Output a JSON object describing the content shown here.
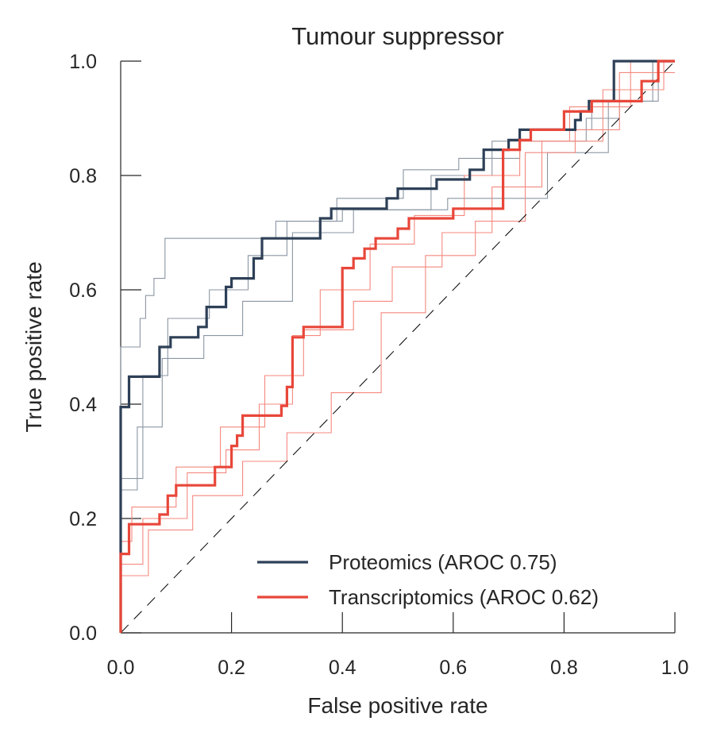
{
  "chart_data": {
    "type": "line",
    "title": "Tumour suppressor",
    "xlabel": "False positive rate",
    "ylabel": "True positive rate",
    "xlim": [
      0,
      1
    ],
    "ylim": [
      0,
      1
    ],
    "xticks": [
      "0.0",
      "0.2",
      "0.4",
      "0.6",
      "0.8",
      "1.0"
    ],
    "yticks": [
      "0.0",
      "0.2",
      "0.4",
      "0.6",
      "0.8",
      "1.0"
    ],
    "grid": false,
    "legend_position": "bottom-right",
    "diagonal": {
      "x": [
        0,
        1
      ],
      "y": [
        0,
        1
      ],
      "style": "dashed",
      "color": "#000000"
    },
    "series": [
      {
        "name": "Proteomics (AROC 0.75)",
        "color": "#2e4057",
        "x": [
          0,
          0,
          0.015,
          0.015,
          0.07,
          0.07,
          0.09,
          0.09,
          0.14,
          0.14,
          0.155,
          0.155,
          0.19,
          0.19,
          0.2,
          0.2,
          0.24,
          0.24,
          0.255,
          0.255,
          0.36,
          0.36,
          0.38,
          0.38,
          0.48,
          0.48,
          0.5,
          0.5,
          0.57,
          0.57,
          0.63,
          0.63,
          0.655,
          0.655,
          0.7,
          0.7,
          0.72,
          0.72,
          0.82,
          0.82,
          0.83,
          0.83,
          0.845,
          0.845,
          0.89,
          0.89,
          0.95,
          0.95,
          1.0
        ],
        "y": [
          0,
          0.395,
          0.395,
          0.448,
          0.448,
          0.5,
          0.5,
          0.517,
          0.517,
          0.535,
          0.535,
          0.57,
          0.57,
          0.605,
          0.605,
          0.62,
          0.62,
          0.655,
          0.655,
          0.69,
          0.69,
          0.725,
          0.725,
          0.742,
          0.742,
          0.76,
          0.76,
          0.777,
          0.777,
          0.793,
          0.793,
          0.81,
          0.81,
          0.845,
          0.845,
          0.862,
          0.862,
          0.88,
          0.88,
          0.897,
          0.897,
          0.912,
          0.912,
          0.93,
          0.93,
          1.0,
          1.0,
          1.0,
          1.0
        ]
      },
      {
        "name": "Transcriptomics (AROC 0.62)",
        "color": "#e8473a",
        "x": [
          0,
          0,
          0.015,
          0.015,
          0.07,
          0.07,
          0.085,
          0.085,
          0.1,
          0.1,
          0.17,
          0.17,
          0.2,
          0.2,
          0.21,
          0.21,
          0.22,
          0.22,
          0.25,
          0.25,
          0.275,
          0.275,
          0.29,
          0.29,
          0.3,
          0.3,
          0.31,
          0.31,
          0.33,
          0.33,
          0.39,
          0.39,
          0.4,
          0.4,
          0.42,
          0.42,
          0.44,
          0.44,
          0.46,
          0.46,
          0.5,
          0.5,
          0.52,
          0.52,
          0.54,
          0.54,
          0.6,
          0.6,
          0.69,
          0.69,
          0.72,
          0.72,
          0.74,
          0.74,
          0.8,
          0.8,
          0.85,
          0.85,
          0.94,
          0.94,
          0.97,
          0.97,
          1.0
        ],
        "y": [
          0,
          0.138,
          0.138,
          0.19,
          0.19,
          0.207,
          0.207,
          0.24,
          0.24,
          0.258,
          0.258,
          0.29,
          0.29,
          0.327,
          0.327,
          0.345,
          0.345,
          0.38,
          0.38,
          0.38,
          0.38,
          0.38,
          0.38,
          0.397,
          0.397,
          0.43,
          0.43,
          0.517,
          0.517,
          0.535,
          0.535,
          0.535,
          0.535,
          0.638,
          0.638,
          0.655,
          0.655,
          0.672,
          0.672,
          0.69,
          0.69,
          0.707,
          0.707,
          0.725,
          0.725,
          0.725,
          0.725,
          0.742,
          0.742,
          0.845,
          0.845,
          0.862,
          0.862,
          0.88,
          0.88,
          0.912,
          0.912,
          0.93,
          0.93,
          0.965,
          0.965,
          1.0,
          1.0
        ]
      }
    ],
    "bootstrap_series": [
      {
        "color": "#8a96a3",
        "x": [
          0,
          0,
          0.035,
          0.035,
          0.045,
          0.045,
          0.06,
          0.06,
          0.08,
          0.08,
          0.2,
          0.2,
          0.28,
          0.28,
          0.39,
          0.39,
          0.51,
          0.51,
          0.61,
          0.61,
          0.72,
          0.72,
          0.85,
          0.85,
          0.97,
          0.97,
          1.0
        ],
        "y": [
          0,
          0.5,
          0.5,
          0.55,
          0.55,
          0.59,
          0.59,
          0.62,
          0.62,
          0.69,
          0.69,
          0.69,
          0.69,
          0.72,
          0.72,
          0.76,
          0.76,
          0.81,
          0.81,
          0.83,
          0.83,
          0.88,
          0.88,
          0.93,
          0.93,
          1.0,
          1.0
        ]
      },
      {
        "color": "#8a96a3",
        "x": [
          0,
          0,
          0.04,
          0.04,
          0.085,
          0.085,
          0.16,
          0.16,
          0.23,
          0.23,
          0.3,
          0.3,
          0.4,
          0.4,
          0.56,
          0.56,
          0.67,
          0.67,
          0.84,
          0.84,
          0.9,
          0.9,
          0.96,
          0.96,
          1.0
        ],
        "y": [
          0,
          0.27,
          0.27,
          0.45,
          0.45,
          0.55,
          0.55,
          0.6,
          0.6,
          0.66,
          0.66,
          0.72,
          0.72,
          0.74,
          0.74,
          0.8,
          0.8,
          0.86,
          0.86,
          0.9,
          0.9,
          0.95,
          0.95,
          1.0,
          1.0
        ]
      },
      {
        "color": "#8a96a3",
        "x": [
          0,
          0,
          0.03,
          0.03,
          0.075,
          0.075,
          0.15,
          0.15,
          0.22,
          0.22,
          0.31,
          0.31,
          0.42,
          0.42,
          0.59,
          0.59,
          0.77,
          0.77,
          0.88,
          0.88,
          0.96,
          0.96,
          1.0
        ],
        "y": [
          0,
          0.25,
          0.25,
          0.36,
          0.36,
          0.48,
          0.48,
          0.52,
          0.52,
          0.58,
          0.58,
          0.7,
          0.7,
          0.74,
          0.74,
          0.76,
          0.76,
          0.84,
          0.84,
          0.93,
          0.93,
          1.0,
          1.0
        ]
      },
      {
        "color": "#f4897f",
        "x": [
          0,
          0,
          0.04,
          0.04,
          0.12,
          0.12,
          0.19,
          0.19,
          0.25,
          0.25,
          0.31,
          0.31,
          0.36,
          0.36,
          0.45,
          0.45,
          0.53,
          0.53,
          0.62,
          0.62,
          0.72,
          0.72,
          0.81,
          0.81,
          0.92,
          0.92,
          1.0
        ],
        "y": [
          0,
          0.12,
          0.12,
          0.2,
          0.2,
          0.28,
          0.28,
          0.32,
          0.32,
          0.4,
          0.4,
          0.52,
          0.52,
          0.6,
          0.6,
          0.68,
          0.68,
          0.73,
          0.73,
          0.8,
          0.8,
          0.86,
          0.86,
          0.92,
          0.92,
          1.0,
          1.0
        ]
      },
      {
        "color": "#f4897f",
        "x": [
          0,
          0,
          0.02,
          0.02,
          0.1,
          0.1,
          0.18,
          0.18,
          0.26,
          0.26,
          0.33,
          0.33,
          0.42,
          0.42,
          0.49,
          0.49,
          0.58,
          0.58,
          0.67,
          0.67,
          0.76,
          0.76,
          0.87,
          0.87,
          0.98,
          0.98,
          1.0
        ],
        "y": [
          0,
          0.16,
          0.16,
          0.22,
          0.22,
          0.29,
          0.29,
          0.36,
          0.36,
          0.45,
          0.45,
          0.53,
          0.53,
          0.58,
          0.58,
          0.64,
          0.64,
          0.7,
          0.7,
          0.78,
          0.78,
          0.86,
          0.86,
          0.95,
          0.95,
          1.0,
          1.0
        ]
      },
      {
        "color": "#f4897f",
        "x": [
          0,
          0,
          0.05,
          0.05,
          0.13,
          0.13,
          0.22,
          0.22,
          0.3,
          0.3,
          0.38,
          0.38,
          0.47,
          0.47,
          0.55,
          0.55,
          0.64,
          0.64,
          0.73,
          0.73,
          0.82,
          0.82,
          0.9,
          0.9,
          1.0
        ],
        "y": [
          0,
          0.1,
          0.1,
          0.18,
          0.18,
          0.24,
          0.24,
          0.3,
          0.3,
          0.35,
          0.35,
          0.42,
          0.42,
          0.56,
          0.56,
          0.66,
          0.66,
          0.72,
          0.72,
          0.84,
          0.84,
          0.88,
          0.88,
          0.98,
          0.98
        ]
      }
    ]
  }
}
